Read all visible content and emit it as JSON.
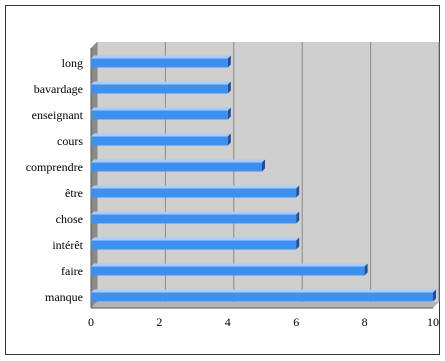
{
  "chart_data": {
    "type": "bar",
    "orientation": "horizontal",
    "style": "3d",
    "categories": [
      "long",
      "bavardage",
      "enseignant",
      "cours",
      "comprendre",
      "être",
      "chose",
      "intérêt",
      "faire",
      "manque"
    ],
    "values": [
      4,
      4,
      4,
      4,
      5,
      6,
      6,
      6,
      8,
      10
    ],
    "xlim": [
      0,
      10
    ],
    "xticks": [
      0,
      2,
      4,
      6,
      8,
      10
    ],
    "grid": true,
    "title": "",
    "xlabel": "",
    "ylabel": "",
    "colors": {
      "bar": "#3f8ff0",
      "bar_top": "#a9cdf8",
      "bar_side": "#1f4f97",
      "plot_background": "#cfcfcf",
      "side_wall": "#8a8a8a",
      "floor": "#b4b4b4",
      "gridline": "#8a8a8a"
    }
  }
}
